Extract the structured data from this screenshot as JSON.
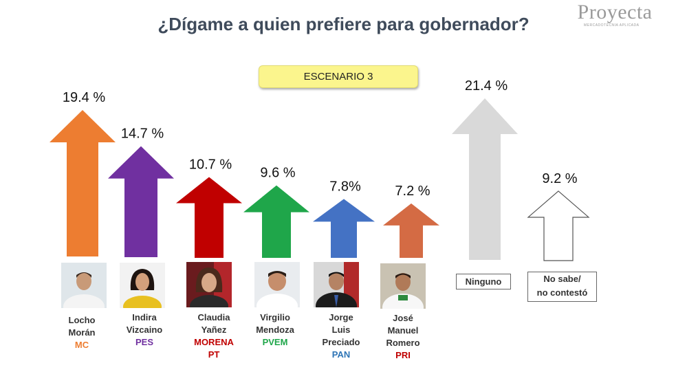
{
  "header": {
    "title": "¿Dígame a quien prefiere para gobernador?",
    "logo_text": "Proyecta",
    "logo_tagline": "MERCADOTECNIA APLICADA"
  },
  "scenario_label": "ESCENARIO 3",
  "chart_data": {
    "type": "bar",
    "title": "¿Dígame a quien prefiere para gobernador?",
    "subtitle": "ESCENARIO 3",
    "categories": [
      "Locho Morán",
      "Indira Vizcaino",
      "Claudia Yañez",
      "Virgilio Mendoza",
      "Jorge Luis Preciado",
      "José Manuel Romero",
      "Ninguno",
      "No sabe/ no contestó"
    ],
    "values": [
      19.4,
      14.7,
      10.7,
      9.6,
      7.8,
      7.2,
      21.4,
      9.2
    ],
    "value_labels": [
      "19.4 %",
      "14.7 %",
      "10.7 %",
      "9.6 %",
      "7.8%",
      "7.2 %",
      "21.4 %",
      "9.2 %"
    ],
    "parties": [
      "MC",
      "PES",
      "MORENA PT",
      "PVEM",
      "PAN",
      "PRI",
      "",
      ""
    ],
    "colors": [
      "#ed7d31",
      "#7030a0",
      "#c00000",
      "#1fa64a",
      "#4472c4",
      "#d46b44",
      "#d9d9d9",
      "#ffffff"
    ],
    "ylim": [
      0,
      21.4
    ]
  },
  "candidates": [
    {
      "name": "Locho\nMorán",
      "party": "MC",
      "party_color": "#ed7d31"
    },
    {
      "name": "Indira\nVizcaino",
      "party": "PES",
      "party_color": "#7030a0"
    },
    {
      "name": "Claudia\nYañez",
      "party": "MORENA\nPT",
      "party_color": "#c00000"
    },
    {
      "name": "Virgilio\nMendoza",
      "party": "PVEM",
      "party_color": "#1fa64a"
    },
    {
      "name": "Jorge\nLuis\nPreciado",
      "party": "PAN",
      "party_color": "#2e75b6"
    },
    {
      "name": "José\nManuel\nRomero",
      "party": "PRI",
      "party_color": "#c00000"
    }
  ],
  "other_labels": {
    "ninguno": "Ninguno",
    "no_sabe": "No sabe/\nno contestó"
  }
}
